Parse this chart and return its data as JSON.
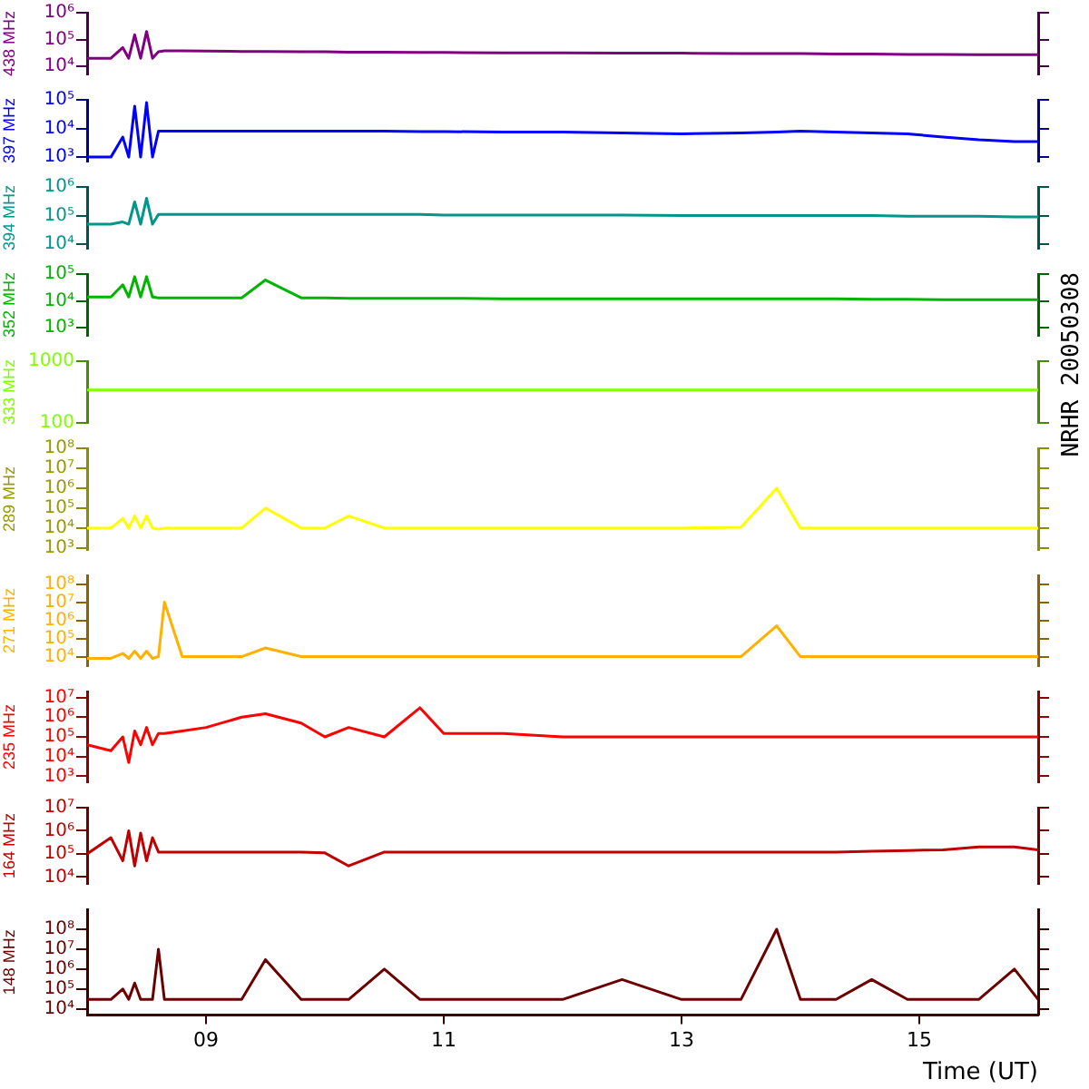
{
  "chart_data": [
    {
      "type": "line",
      "ylabel": "438 MHz",
      "color": "#800080",
      "log": "y",
      "grid": false,
      "legend": false,
      "tick_labels": "y",
      "xlim": [
        8,
        16
      ],
      "ylim": [
        5000,
        1000000
      ],
      "yticks": [
        {
          "value": 10000,
          "label": "10⁴"
        },
        {
          "value": 100000,
          "label": "10⁵"
        },
        {
          "value": 1000000,
          "label": "10⁶"
        }
      ],
      "annotations": [
        "NRHR 20050308"
      ],
      "x": [
        8.0,
        8.2,
        8.3,
        8.35,
        8.4,
        8.45,
        8.5,
        8.55,
        8.6,
        8.65,
        8.8,
        9.0,
        9.3,
        9.5,
        9.8,
        10.0,
        10.2,
        10.5,
        10.8,
        11.0,
        11.5,
        12.0,
        12.5,
        13.0,
        13.5,
        13.8,
        14.0,
        14.3,
        14.6,
        14.9,
        15.2,
        15.5,
        15.8,
        16.0
      ],
      "values": [
        20000,
        20000,
        50000,
        20000,
        150000,
        20000,
        200000,
        20000,
        35000,
        38000,
        38000,
        37000,
        36000,
        36000,
        35000,
        35000,
        34000,
        34000,
        33000,
        33000,
        32000,
        32000,
        31000,
        31000,
        30000,
        30000,
        30000,
        29000,
        29000,
        28000,
        28000,
        27000,
        27000,
        27000
      ]
    },
    {
      "type": "line",
      "ylabel": "397 MHz",
      "color": "#0000ff",
      "log": "y",
      "grid": false,
      "legend": false,
      "tick_labels": "y",
      "xlim": [
        8,
        16
      ],
      "ylim": [
        700,
        100000
      ],
      "yticks": [
        {
          "value": 1000,
          "label": "10³"
        },
        {
          "value": 10000,
          "label": "10⁴"
        },
        {
          "value": 100000,
          "label": "10⁵"
        }
      ],
      "x": [
        8.0,
        8.2,
        8.3,
        8.35,
        8.4,
        8.45,
        8.5,
        8.55,
        8.6,
        8.65,
        8.8,
        9.0,
        9.3,
        9.5,
        9.8,
        10.0,
        10.2,
        10.5,
        10.8,
        11.0,
        11.5,
        12.0,
        12.5,
        13.0,
        13.5,
        13.8,
        14.0,
        14.3,
        14.6,
        14.9,
        15.2,
        15.5,
        15.8,
        16.0
      ],
      "values": [
        1000,
        1000,
        5000,
        1000,
        60000,
        1000,
        80000,
        1000,
        8000,
        8000,
        8000,
        8000,
        8000,
        8000,
        8000,
        8000,
        8000,
        8000,
        7800,
        7800,
        7500,
        7500,
        7000,
        6500,
        7000,
        7500,
        8000,
        7500,
        7000,
        6500,
        5000,
        4000,
        3500,
        3500
      ]
    },
    {
      "type": "line",
      "ylabel": "394 MHz",
      "color": "#00968c",
      "log": "y",
      "grid": false,
      "legend": false,
      "tick_labels": "y",
      "xlim": [
        8,
        16
      ],
      "ylim": [
        7000,
        1000000
      ],
      "yticks": [
        {
          "value": 10000,
          "label": "10⁴"
        },
        {
          "value": 100000,
          "label": "10⁵"
        },
        {
          "value": 1000000,
          "label": "10⁶"
        }
      ],
      "x": [
        8.0,
        8.2,
        8.3,
        8.35,
        8.4,
        8.45,
        8.5,
        8.55,
        8.6,
        8.65,
        8.8,
        9.0,
        9.3,
        9.5,
        9.8,
        10.0,
        10.2,
        10.5,
        10.8,
        11.0,
        11.5,
        12.0,
        12.5,
        13.0,
        13.5,
        13.8,
        14.0,
        14.3,
        14.6,
        14.9,
        15.2,
        15.5,
        15.8,
        16.0
      ],
      "values": [
        50000,
        50000,
        60000,
        50000,
        300000,
        50000,
        400000,
        50000,
        110000,
        110000,
        110000,
        110000,
        110000,
        110000,
        110000,
        110000,
        110000,
        110000,
        110000,
        105000,
        105000,
        105000,
        105000,
        100000,
        100000,
        100000,
        100000,
        100000,
        100000,
        95000,
        95000,
        95000,
        90000,
        90000
      ]
    },
    {
      "type": "line",
      "ylabel": "352 MHz",
      "color": "#00b400",
      "log": "y",
      "grid": false,
      "legend": false,
      "tick_labels": "y",
      "xlim": [
        8,
        16
      ],
      "ylim": [
        500,
        100000
      ],
      "yticks": [
        {
          "value": 1000,
          "label": "10³"
        },
        {
          "value": 10000,
          "label": "10⁴"
        },
        {
          "value": 100000,
          "label": "10⁵"
        }
      ],
      "x": [
        8.0,
        8.2,
        8.3,
        8.35,
        8.4,
        8.45,
        8.5,
        8.55,
        8.6,
        8.65,
        8.8,
        9.0,
        9.3,
        9.5,
        9.8,
        10.0,
        10.2,
        10.5,
        10.8,
        11.0,
        11.5,
        12.0,
        12.5,
        13.0,
        13.5,
        13.8,
        14.0,
        14.3,
        14.6,
        14.9,
        15.2,
        15.5,
        15.8,
        16.0
      ],
      "values": [
        14000,
        14000,
        40000,
        14000,
        80000,
        14000,
        80000,
        14000,
        13000,
        13000,
        13000,
        13000,
        13000,
        60000,
        13000,
        13000,
        12500,
        12500,
        12500,
        12500,
        12000,
        12000,
        12000,
        12000,
        12000,
        12000,
        12000,
        12000,
        11500,
        11500,
        11000,
        11000,
        11000,
        11000
      ]
    },
    {
      "type": "line",
      "ylabel": "333 MHz",
      "color": "#80ff00",
      "log": "y",
      "grid": false,
      "legend": false,
      "tick_labels": "y",
      "xlim": [
        8,
        16
      ],
      "ylim": [
        100,
        1000
      ],
      "yticks": [
        100,
        1000
      ],
      "x": [
        8.0,
        16.0
      ],
      "values": [
        340,
        340
      ]
    },
    {
      "type": "line",
      "ylabel": "289 MHz",
      "color": "#ffff00",
      "log": "y",
      "grid": false,
      "legend": false,
      "tick_labels": "y",
      "xlim": [
        8,
        16
      ],
      "ylim": [
        800,
        100000000
      ],
      "yticks": [
        {
          "value": 1000,
          "label": "10³"
        },
        {
          "value": 10000,
          "label": "10⁴"
        },
        {
          "value": 100000,
          "label": "10⁵"
        },
        {
          "value": 1000000,
          "label": "10⁶"
        },
        {
          "value": 10000000,
          "label": "10⁷"
        },
        {
          "value": 100000000,
          "label": "10⁸"
        }
      ],
      "x": [
        8.0,
        8.2,
        8.3,
        8.35,
        8.4,
        8.45,
        8.5,
        8.55,
        8.6,
        8.65,
        8.8,
        9.0,
        9.3,
        9.5,
        9.8,
        10.0,
        10.2,
        10.5,
        10.8,
        11.0,
        11.5,
        12.0,
        12.5,
        13.0,
        13.5,
        13.8,
        14.0,
        14.3,
        14.6,
        14.9,
        15.2,
        15.5,
        15.8,
        16.0
      ],
      "values": [
        10000,
        10000,
        30000,
        10000,
        40000,
        10000,
        40000,
        10000,
        9000,
        10000,
        10000,
        10000,
        10000,
        100000,
        10000,
        10000,
        40000,
        10000,
        10000,
        10000,
        10000,
        10000,
        10000,
        10000,
        11000,
        1000000,
        10000,
        10000,
        10000,
        10000,
        10000,
        10000,
        10000,
        10000
      ]
    },
    {
      "type": "line",
      "ylabel": "271 MHz",
      "color": "#ffb000",
      "log": "y",
      "grid": false,
      "legend": false,
      "tick_labels": "y",
      "xlim": [
        8,
        16
      ],
      "ylim": [
        3000,
        300000000
      ],
      "yticks": [
        {
          "value": 10000,
          "label": "10⁴"
        },
        {
          "value": 100000,
          "label": "10⁵"
        },
        {
          "value": 1000000,
          "label": "10⁶"
        },
        {
          "value": 10000000,
          "label": "10⁷"
        },
        {
          "value": 100000000,
          "label": "10⁸"
        }
      ],
      "x": [
        8.0,
        8.2,
        8.3,
        8.35,
        8.4,
        8.45,
        8.5,
        8.55,
        8.6,
        8.65,
        8.8,
        9.0,
        9.3,
        9.5,
        9.8,
        10.0,
        10.2,
        10.5,
        10.8,
        11.0,
        11.5,
        12.0,
        12.5,
        13.0,
        13.5,
        13.8,
        14.0,
        14.3,
        14.6,
        14.9,
        15.2,
        15.5,
        15.8,
        16.0
      ],
      "values": [
        8000,
        8000,
        15000,
        8000,
        20000,
        8000,
        20000,
        8000,
        10000,
        10000000,
        10000,
        10000,
        10000,
        30000,
        10000,
        10000,
        10000,
        10000,
        10000,
        10000,
        10000,
        10000,
        10000,
        10000,
        10000,
        500000,
        10000,
        10000,
        10000,
        10000,
        10000,
        10000,
        10000,
        10000
      ]
    },
    {
      "type": "line",
      "ylabel": "235 MHz",
      "color": "#ff0000",
      "log": "y",
      "grid": false,
      "legend": false,
      "tick_labels": "y",
      "xlim": [
        8,
        16
      ],
      "ylim": [
        500,
        20000000
      ],
      "yticks": [
        {
          "value": 1000,
          "label": "10³"
        },
        {
          "value": 10000,
          "label": "10⁴"
        },
        {
          "value": 100000,
          "label": "10⁵"
        },
        {
          "value": 1000000,
          "label": "10⁶"
        },
        {
          "value": 10000000,
          "label": "10⁷"
        }
      ],
      "x": [
        8.0,
        8.2,
        8.3,
        8.35,
        8.4,
        8.45,
        8.5,
        8.55,
        8.6,
        8.65,
        8.8,
        9.0,
        9.3,
        9.5,
        9.8,
        10.0,
        10.2,
        10.5,
        10.8,
        11.0,
        11.5,
        12.0,
        12.5,
        13.0,
        13.5,
        13.8,
        14.0,
        14.3,
        14.6,
        14.9,
        15.2,
        15.5,
        15.8,
        16.0
      ],
      "values": [
        40000,
        20000,
        100000,
        5000,
        200000,
        40000,
        300000,
        40000,
        150000,
        150000,
        200000,
        300000,
        1000000,
        1500000,
        500000,
        100000,
        300000,
        100000,
        3000000,
        150000,
        150000,
        100000,
        100000,
        100000,
        100000,
        100000,
        100000,
        100000,
        100000,
        100000,
        100000,
        100000,
        100000,
        100000
      ]
    },
    {
      "type": "line",
      "ylabel": "164 MHz",
      "color": "#c00000",
      "log": "y",
      "grid": false,
      "legend": false,
      "tick_labels": "y",
      "xlim": [
        8,
        16
      ],
      "ylim": [
        5000,
        10000000
      ],
      "yticks": [
        {
          "value": 10000,
          "label": "10⁴"
        },
        {
          "value": 100000,
          "label": "10⁵"
        },
        {
          "value": 1000000,
          "label": "10⁶"
        },
        {
          "value": 10000000,
          "label": "10⁷"
        }
      ],
      "x": [
        8.0,
        8.2,
        8.3,
        8.35,
        8.4,
        8.45,
        8.5,
        8.55,
        8.6,
        8.65,
        8.8,
        9.0,
        9.3,
        9.5,
        9.8,
        10.0,
        10.2,
        10.5,
        10.8,
        11.0,
        11.5,
        12.0,
        12.5,
        13.0,
        13.5,
        13.8,
        14.0,
        14.3,
        14.6,
        14.9,
        15.2,
        15.5,
        15.8,
        16.0
      ],
      "values": [
        100000,
        500000,
        50000,
        1000000,
        30000,
        800000,
        50000,
        500000,
        120000,
        120000,
        120000,
        120000,
        120000,
        120000,
        120000,
        110000,
        30000,
        120000,
        120000,
        120000,
        120000,
        120000,
        120000,
        120000,
        120000,
        120000,
        120000,
        120000,
        130000,
        140000,
        150000,
        200000,
        200000,
        150000
      ]
    },
    {
      "type": "line",
      "ylabel": "148 MHz",
      "xlabel": "Time (UT)",
      "color": "#6b0000",
      "log": "y",
      "grid": false,
      "legend": false,
      "xlim": [
        8,
        16
      ],
      "xticks": [
        {
          "value": 9,
          "label": "09"
        },
        11,
        13,
        15
      ],
      "ylim": [
        5000,
        1000000000
      ],
      "yticks": [
        {
          "value": 10000,
          "label": "10⁴"
        },
        {
          "value": 100000,
          "label": "10⁵"
        },
        {
          "value": 1000000,
          "label": "10⁶"
        },
        {
          "value": 10000000,
          "label": "10⁷"
        },
        {
          "value": 100000000,
          "label": "10⁸"
        }
      ],
      "x": [
        8.0,
        8.2,
        8.3,
        8.35,
        8.4,
        8.45,
        8.5,
        8.55,
        8.6,
        8.65,
        8.8,
        9.0,
        9.3,
        9.5,
        9.8,
        10.0,
        10.2,
        10.5,
        10.8,
        11.0,
        11.5,
        12.0,
        12.5,
        13.0,
        13.5,
        13.8,
        14.0,
        14.3,
        14.6,
        14.9,
        15.2,
        15.5,
        15.8,
        16.0
      ],
      "values": [
        30000,
        30000,
        100000,
        30000,
        200000,
        30000,
        30000,
        30000,
        10000000,
        30000,
        30000,
        30000,
        30000,
        3000000,
        30000,
        30000,
        30000,
        1000000,
        30000,
        30000,
        30000,
        30000,
        300000,
        30000,
        30000,
        100000000,
        30000,
        30000,
        300000,
        30000,
        30000,
        30000,
        1000000,
        30000
      ]
    }
  ]
}
